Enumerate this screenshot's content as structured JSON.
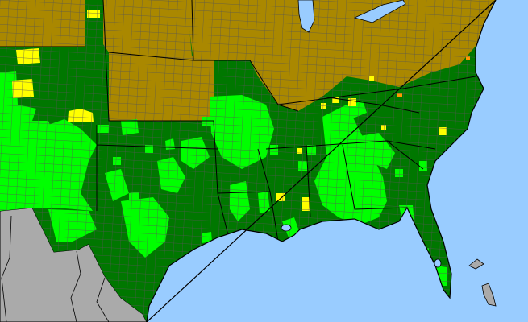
{
  "map": {
    "colors": {
      "ocean": "#99ccff",
      "foreign_land": "#aaaaaa",
      "category_dark_green": "#007700",
      "category_bright_green": "#00ff00",
      "category_olive": "#aa8800",
      "category_yellow": "#ffff00",
      "category_orange": "#ff9900",
      "county_border": "#555555",
      "state_border": "#000000"
    }
  }
}
